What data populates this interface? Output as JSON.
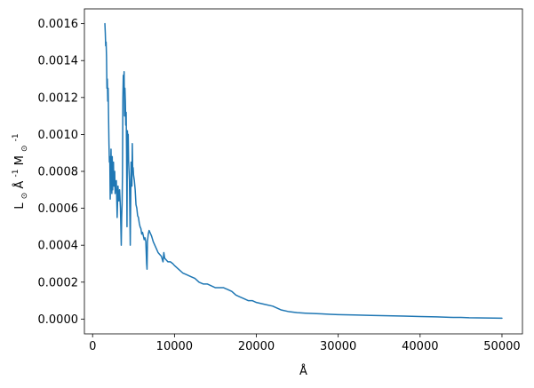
{
  "chart_data": {
    "type": "line",
    "title": "",
    "xlabel": "Å",
    "ylabel_parts": {
      "main": "L",
      "sub1": "⊙",
      "mid": " Å",
      "sup": "-1",
      "tail": " M",
      "sub2": "⊙",
      "sup2": "-1"
    },
    "xlim": [
      -1000,
      52500
    ],
    "ylim": [
      -8e-05,
      0.00168
    ],
    "xticks": [
      0,
      10000,
      20000,
      30000,
      40000,
      50000
    ],
    "xtick_labels": [
      "0",
      "10000",
      "20000",
      "30000",
      "40000",
      "50000"
    ],
    "yticks": [
      0.0,
      0.0002,
      0.0004,
      0.0006,
      0.0008,
      0.001,
      0.0012,
      0.0014,
      0.0016
    ],
    "ytick_labels": [
      "0.0000",
      "0.0002",
      "0.0004",
      "0.0006",
      "0.0008",
      "0.0010",
      "0.0012",
      "0.0014",
      "0.0016"
    ],
    "grid": false,
    "series": [
      {
        "color": "#1f77b4",
        "x": [
          1500,
          1550,
          1600,
          1650,
          1700,
          1750,
          1800,
          1850,
          1900,
          1950,
          2000,
          2050,
          2100,
          2150,
          2200,
          2250,
          2300,
          2350,
          2400,
          2450,
          2500,
          2550,
          2600,
          2650,
          2700,
          2750,
          2800,
          2900,
          3000,
          3100,
          3200,
          3300,
          3400,
          3500,
          3550,
          3600,
          3650,
          3700,
          3750,
          3800,
          3850,
          3900,
          3950,
          4000,
          4050,
          4100,
          4150,
          4200,
          4250,
          4300,
          4350,
          4400,
          4500,
          4600,
          4700,
          4800,
          4850,
          4900,
          4950,
          5000,
          5100,
          5200,
          5300,
          5400,
          5500,
          5600,
          5700,
          5800,
          5900,
          6000,
          6100,
          6200,
          6300,
          6400,
          6500,
          6600,
          6650,
          6700,
          6800,
          6900,
          7000,
          7200,
          7400,
          7600,
          7800,
          8000,
          8200,
          8400,
          8600,
          8700,
          8800,
          9000,
          9200,
          9500,
          9800,
          10000,
          10500,
          11000,
          11500,
          12000,
          12500,
          13000,
          13500,
          14000,
          14500,
          15000,
          15500,
          16000,
          16500,
          17000,
          17500,
          18000,
          18500,
          19000,
          19500,
          20000,
          21000,
          22000,
          23000,
          24000,
          25000,
          26000,
          27000,
          28000,
          29000,
          30000,
          32000,
          34000,
          36000,
          38000,
          40000,
          42000,
          44000,
          45000,
          46000,
          48000,
          50000
        ],
        "y": [
          0.0016,
          0.00155,
          0.00148,
          0.0015,
          0.00142,
          0.00125,
          0.0013,
          0.00118,
          0.00125,
          0.0011,
          0.00095,
          0.00085,
          0.00088,
          0.00065,
          0.00078,
          0.00092,
          0.00075,
          0.00068,
          0.00088,
          0.0007,
          0.00082,
          0.00085,
          0.00072,
          0.00078,
          0.0008,
          0.00068,
          0.00074,
          0.00075,
          0.00055,
          0.00072,
          0.00064,
          0.0007,
          0.0006,
          0.0004,
          0.00055,
          0.00062,
          0.00078,
          0.0012,
          0.00132,
          0.00128,
          0.00134,
          0.0011,
          0.00125,
          0.00118,
          0.00105,
          0.00112,
          0.0009,
          0.0005,
          0.00102,
          0.00095,
          0.001,
          0.00085,
          0.00075,
          0.0004,
          0.00085,
          0.00072,
          0.00095,
          0.0008,
          0.00082,
          0.00078,
          0.00075,
          0.0007,
          0.00062,
          0.0006,
          0.00056,
          0.00055,
          0.00052,
          0.0005,
          0.00049,
          0.00046,
          0.00047,
          0.00045,
          0.00043,
          0.00044,
          0.00042,
          0.0003,
          0.00027,
          0.00042,
          0.00046,
          0.00048,
          0.00047,
          0.00045,
          0.00042,
          0.0004,
          0.00038,
          0.00036,
          0.00035,
          0.00034,
          0.00031,
          0.00036,
          0.00033,
          0.00032,
          0.00031,
          0.00031,
          0.0003,
          0.00029,
          0.00027,
          0.00025,
          0.00024,
          0.00023,
          0.00022,
          0.0002,
          0.00019,
          0.00019,
          0.00018,
          0.00017,
          0.00017,
          0.00017,
          0.00016,
          0.00015,
          0.00013,
          0.00012,
          0.00011,
          0.0001,
          0.0001,
          9e-05,
          8e-05,
          7e-05,
          5e-05,
          4e-05,
          3.5e-05,
          3.2e-05,
          3e-05,
          2.8e-05,
          2.6e-05,
          2.4e-05,
          2.2e-05,
          2e-05,
          1.8e-05,
          1.6e-05,
          1.4e-05,
          1.2e-05,
          9e-06,
          9e-06,
          7e-06,
          6e-06,
          5e-06
        ]
      }
    ]
  }
}
